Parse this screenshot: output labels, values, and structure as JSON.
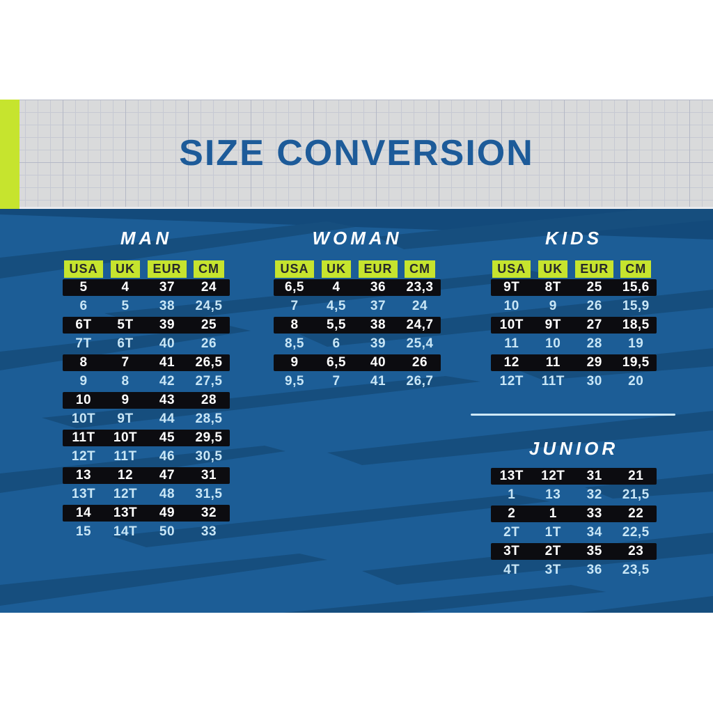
{
  "poster": {
    "title": "SIZE CONVERSION"
  },
  "columns": [
    "USA",
    "UK",
    "EUR",
    "CM"
  ],
  "tables": {
    "man": {
      "title": "MAN",
      "rows": [
        [
          "5",
          "4",
          "37",
          "24"
        ],
        [
          "6",
          "5",
          "38",
          "24,5"
        ],
        [
          "6T",
          "5T",
          "39",
          "25"
        ],
        [
          "7T",
          "6T",
          "40",
          "26"
        ],
        [
          "8",
          "7",
          "41",
          "26,5"
        ],
        [
          "9",
          "8",
          "42",
          "27,5"
        ],
        [
          "10",
          "9",
          "43",
          "28"
        ],
        [
          "10T",
          "9T",
          "44",
          "28,5"
        ],
        [
          "11T",
          "10T",
          "45",
          "29,5"
        ],
        [
          "12T",
          "11T",
          "46",
          "30,5"
        ],
        [
          "13",
          "12",
          "47",
          "31"
        ],
        [
          "13T",
          "12T",
          "48",
          "31,5"
        ],
        [
          "14",
          "13T",
          "49",
          "32"
        ],
        [
          "15",
          "14T",
          "50",
          "33"
        ]
      ]
    },
    "woman": {
      "title": "WOMAN",
      "rows": [
        [
          "6,5",
          "4",
          "36",
          "23,3"
        ],
        [
          "7",
          "4,5",
          "37",
          "24"
        ],
        [
          "8",
          "5,5",
          "38",
          "24,7"
        ],
        [
          "8,5",
          "6",
          "39",
          "25,4"
        ],
        [
          "9",
          "6,5",
          "40",
          "26"
        ],
        [
          "9,5",
          "7",
          "41",
          "26,7"
        ]
      ]
    },
    "kids": {
      "title": "KIDS",
      "rows": [
        [
          "9T",
          "8T",
          "25",
          "15,6"
        ],
        [
          "10",
          "9",
          "26",
          "15,9"
        ],
        [
          "10T",
          "9T",
          "27",
          "18,5"
        ],
        [
          "11",
          "10",
          "28",
          "19"
        ],
        [
          "12",
          "11",
          "29",
          "19,5"
        ],
        [
          "12T",
          "11T",
          "30",
          "20"
        ]
      ]
    },
    "junior": {
      "title": "JUNIOR",
      "rows": [
        [
          "13T",
          "12T",
          "31",
          "21"
        ],
        [
          "1",
          "13",
          "32",
          "21,5"
        ],
        [
          "2",
          "1",
          "33",
          "22"
        ],
        [
          "2T",
          "1T",
          "34",
          "22,5"
        ],
        [
          "3T",
          "2T",
          "35",
          "23"
        ],
        [
          "4T",
          "3T",
          "36",
          "23,5"
        ]
      ]
    }
  },
  "colors": {
    "accent_lime": "#c6e42e",
    "background_blue": "#1c5d96",
    "stripe_blue": "#164e7e",
    "title_blue": "#1d5b99",
    "row_black": "#0c0c10",
    "row_text_light": "#c8e6f6",
    "row_text_dark_bar": "#ffffff",
    "badge_text": "#26282b",
    "separator_light": "#cfe9f7",
    "header_grid_bg": "#d9dadb"
  },
  "chart_data": [
    {
      "type": "table",
      "title": "MAN",
      "columns": [
        "USA",
        "UK",
        "EUR",
        "CM"
      ],
      "rows": [
        [
          "5",
          "4",
          "37",
          "24"
        ],
        [
          "6",
          "5",
          "38",
          "24,5"
        ],
        [
          "6T",
          "5T",
          "39",
          "25"
        ],
        [
          "7T",
          "6T",
          "40",
          "26"
        ],
        [
          "8",
          "7",
          "41",
          "26,5"
        ],
        [
          "9",
          "8",
          "42",
          "27,5"
        ],
        [
          "10",
          "9",
          "43",
          "28"
        ],
        [
          "10T",
          "9T",
          "44",
          "28,5"
        ],
        [
          "11T",
          "10T",
          "45",
          "29,5"
        ],
        [
          "12T",
          "11T",
          "46",
          "30,5"
        ],
        [
          "13",
          "12",
          "47",
          "31"
        ],
        [
          "13T",
          "12T",
          "48",
          "31,5"
        ],
        [
          "14",
          "13T",
          "49",
          "32"
        ],
        [
          "15",
          "14T",
          "50",
          "33"
        ]
      ]
    },
    {
      "type": "table",
      "title": "WOMAN",
      "columns": [
        "USA",
        "UK",
        "EUR",
        "CM"
      ],
      "rows": [
        [
          "6,5",
          "4",
          "36",
          "23,3"
        ],
        [
          "7",
          "4,5",
          "37",
          "24"
        ],
        [
          "8",
          "5,5",
          "38",
          "24,7"
        ],
        [
          "8,5",
          "6",
          "39",
          "25,4"
        ],
        [
          "9",
          "6,5",
          "40",
          "26"
        ],
        [
          "9,5",
          "7",
          "41",
          "26,7"
        ]
      ]
    },
    {
      "type": "table",
      "title": "KIDS",
      "columns": [
        "USA",
        "UK",
        "EUR",
        "CM"
      ],
      "rows": [
        [
          "9T",
          "8T",
          "25",
          "15,6"
        ],
        [
          "10",
          "9",
          "26",
          "15,9"
        ],
        [
          "10T",
          "9T",
          "27",
          "18,5"
        ],
        [
          "11",
          "10",
          "28",
          "19"
        ],
        [
          "12",
          "11",
          "29",
          "19,5"
        ],
        [
          "12T",
          "11T",
          "30",
          "20"
        ]
      ]
    },
    {
      "type": "table",
      "title": "JUNIOR",
      "rows": [
        [
          "13T",
          "12T",
          "31",
          "21"
        ],
        [
          "1",
          "13",
          "32",
          "21,5"
        ],
        [
          "2",
          "1",
          "33",
          "22"
        ],
        [
          "2T",
          "1T",
          "34",
          "22,5"
        ],
        [
          "3T",
          "2T",
          "35",
          "23"
        ],
        [
          "4T",
          "3T",
          "36",
          "23,5"
        ]
      ]
    }
  ]
}
